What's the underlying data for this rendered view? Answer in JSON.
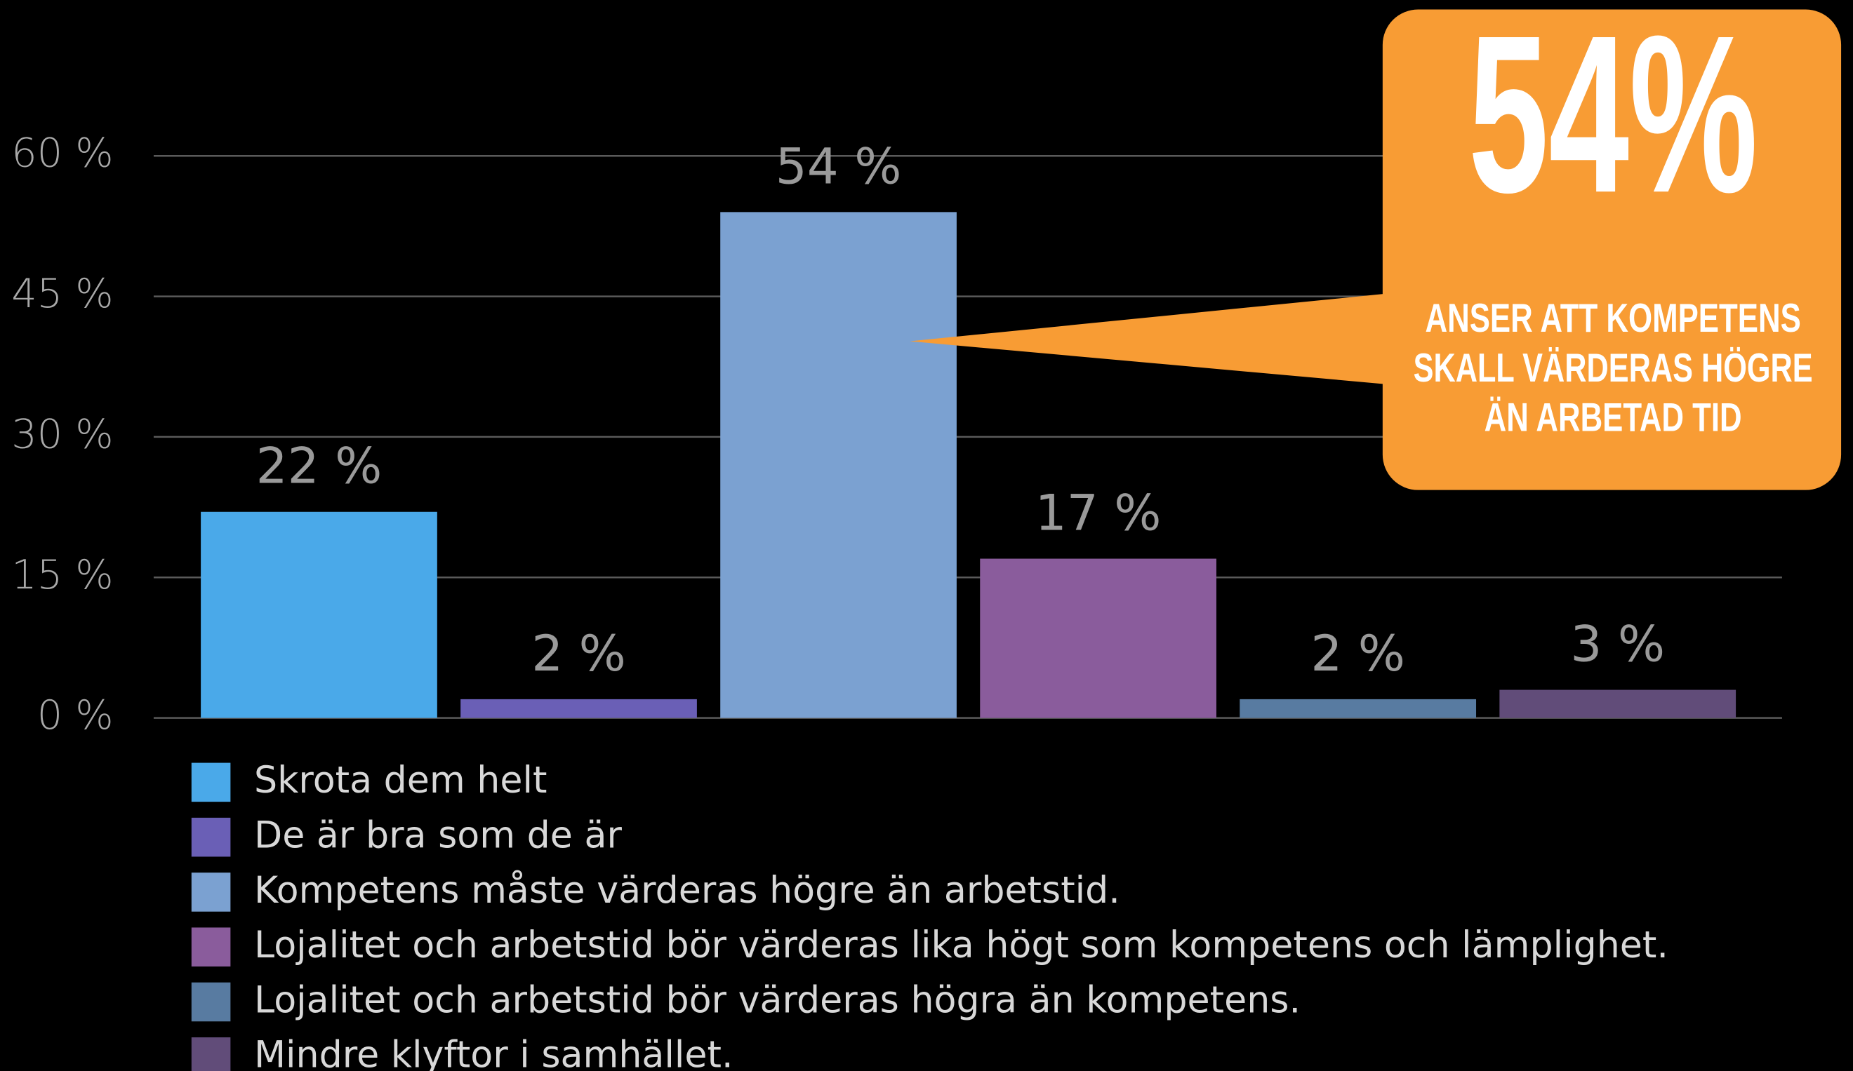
{
  "chart_data": {
    "type": "bar",
    "series": [
      {
        "name": "Skrota dem helt",
        "color": "#4aa9e9",
        "values": [
          22
        ],
        "value_labels": [
          "22 %"
        ]
      },
      {
        "name": "De är bra som de är",
        "color": "#6a5fb6",
        "values": [
          2
        ],
        "value_labels": [
          "2 %"
        ]
      },
      {
        "name": "Kompetens måste värderas högre än arbetstid.",
        "color": "#7ba1d1",
        "values": [
          54
        ],
        "value_labels": [
          "54 %"
        ]
      },
      {
        "name": "Lojalitet och arbetstid bör värderas lika högt som kompetens och lämplighet.",
        "color": "#8a5c9c",
        "values": [
          17
        ],
        "value_labels": [
          "17 %"
        ]
      },
      {
        "name": "Lojalitet och arbetstid bör värderas högra än kompetens.",
        "color": "#587ba1",
        "values": [
          2
        ],
        "value_labels": [
          "2 %"
        ]
      },
      {
        "name": "Mindre klyftor i samhället.",
        "color": "#614c79",
        "values": [
          3
        ],
        "value_labels": [
          "3 %"
        ]
      }
    ],
    "ylim": [
      0,
      60
    ],
    "yticks": [
      {
        "value": 0,
        "label": "0 %"
      },
      {
        "value": 15,
        "label": "15 %"
      },
      {
        "value": 30,
        "label": "30 %"
      },
      {
        "value": 45,
        "label": "45 %"
      },
      {
        "value": 60,
        "label": "60 %"
      }
    ],
    "grid": true,
    "legend": "bottom",
    "annotation": {
      "headline": "54%",
      "lines": [
        "ANSER ATT KOMPETENS",
        "SKALL VÄRDERAS HÖGRE",
        "ÄN ARBETAD TID"
      ],
      "color": "#f89c34"
    }
  }
}
